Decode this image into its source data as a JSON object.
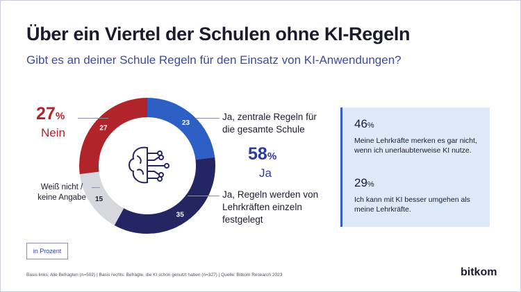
{
  "header": {
    "title": "Über ein Viertel der Schulen ohne KI-Regeln",
    "subtitle": "Gibt es an deiner Schule Regeln für den Einsatz von KI-Anwendungen?"
  },
  "highlights": {
    "nein": {
      "value": "27",
      "unit": "%",
      "label": "Nein"
    },
    "ja": {
      "value": "58",
      "unit": "%",
      "label": "Ja"
    }
  },
  "chart_data": {
    "type": "pie",
    "donut": true,
    "categories": [
      "Ja, zentrale Regeln für die gesamte Schule",
      "Ja, Regeln werden von Lehrkräften einzeln festgelegt",
      "Weiß nicht / keine Angabe",
      "Nein"
    ],
    "values": [
      23,
      35,
      15,
      27
    ],
    "value_labels": [
      "23",
      "35",
      "15",
      "27"
    ],
    "colors": [
      "#2d5fc4",
      "#242563",
      "#d6d8dd",
      "#b0242a"
    ],
    "center_icon": "ai-brain-icon"
  },
  "labels": {
    "zentral": "Ja, zentrale Regeln für die gesamte Schule",
    "lehrkraefte": "Ja, Regeln werden von Lehrkräften einzeln festgelegt",
    "weiss": "Weiß nicht / keine Angabe"
  },
  "side_panel": {
    "stat1": {
      "value": "46",
      "unit": "%",
      "text": "Meine Lehrkräfte merken es gar nicht, wenn ich unerlaubterweise KI nutze."
    },
    "stat2": {
      "value": "29",
      "unit": "%",
      "text": "Ich kann mit KI besser umgehen als meine Lehrkräfte."
    }
  },
  "unit_note": "in Prozent",
  "footer": "Basis links: Alle Befragten (n=502) | Basis rechts: Befragte, die KI schon genutzt haben (n=327) | Quelle: Bitkom Research 2023",
  "brand": "bitkom"
}
